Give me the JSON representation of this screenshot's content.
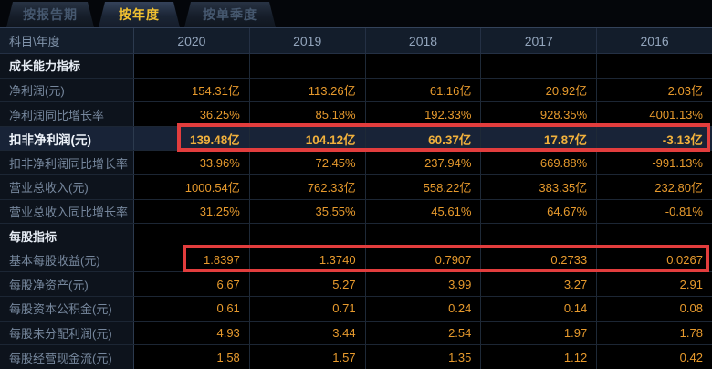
{
  "tabs": [
    {
      "label": "按报告期",
      "active": false
    },
    {
      "label": "按年度",
      "active": true
    },
    {
      "label": "按单季度",
      "active": false
    }
  ],
  "table": {
    "corner_header": "科目\\年度",
    "year_columns": [
      "2020",
      "2019",
      "2018",
      "2017",
      "2016"
    ],
    "rows": [
      {
        "label": "成长能力指标",
        "type": "section",
        "values": [
          "",
          "",
          "",
          "",
          ""
        ]
      },
      {
        "label": "净利润(元)",
        "type": "data",
        "values": [
          "154.31亿",
          "113.26亿",
          "61.16亿",
          "20.92亿",
          "2.03亿"
        ]
      },
      {
        "label": "净利润同比增长率",
        "type": "data",
        "values": [
          "36.25%",
          "85.18%",
          "192.33%",
          "928.35%",
          "4001.13%"
        ]
      },
      {
        "label": "扣非净利润(元)",
        "type": "highlight",
        "values": [
          "139.48亿",
          "104.12亿",
          "60.37亿",
          "17.87亿",
          "-3.13亿"
        ]
      },
      {
        "label": "扣非净利润同比增长率",
        "type": "data",
        "values": [
          "33.96%",
          "72.45%",
          "237.94%",
          "669.88%",
          "-991.13%"
        ]
      },
      {
        "label": "营业总收入(元)",
        "type": "data",
        "values": [
          "1000.54亿",
          "762.33亿",
          "558.22亿",
          "383.35亿",
          "232.80亿"
        ]
      },
      {
        "label": "营业总收入同比增长率",
        "type": "data",
        "values": [
          "31.25%",
          "35.55%",
          "45.61%",
          "64.67%",
          "-0.81%"
        ]
      },
      {
        "label": "每股指标",
        "type": "section",
        "values": [
          "",
          "",
          "",
          "",
          ""
        ]
      },
      {
        "label": "基本每股收益(元)",
        "type": "data",
        "values": [
          "1.8397",
          "1.3740",
          "0.7907",
          "0.2733",
          "0.0267"
        ]
      },
      {
        "label": "每股净资产(元)",
        "type": "data",
        "values": [
          "6.67",
          "5.27",
          "3.99",
          "3.27",
          "2.91"
        ]
      },
      {
        "label": "每股资本公积金(元)",
        "type": "data",
        "values": [
          "0.61",
          "0.71",
          "0.24",
          "0.14",
          "0.08"
        ]
      },
      {
        "label": "每股未分配利润(元)",
        "type": "data",
        "values": [
          "4.93",
          "3.44",
          "2.54",
          "1.97",
          "1.78"
        ]
      },
      {
        "label": "每股经营现金流(元)",
        "type": "data",
        "values": [
          "1.58",
          "1.57",
          "1.35",
          "1.12",
          "0.42"
        ]
      }
    ],
    "annotations": [
      {
        "name": "red-box-non-gaap-net-profit",
        "row_label": "扣非净利润(元)",
        "color": "#e23d3d"
      },
      {
        "name": "red-box-basic-eps",
        "row_label": "基本每股收益(元)",
        "color": "#e23d3d"
      }
    ]
  },
  "colors": {
    "accent_value": "#e79a2d",
    "highlight_value": "#f1b13c",
    "active_tab_text": "#f2c131",
    "annotation_red": "#e23d3d",
    "highlight_row_bg": "#182337",
    "header_bg": "#131d2b"
  }
}
